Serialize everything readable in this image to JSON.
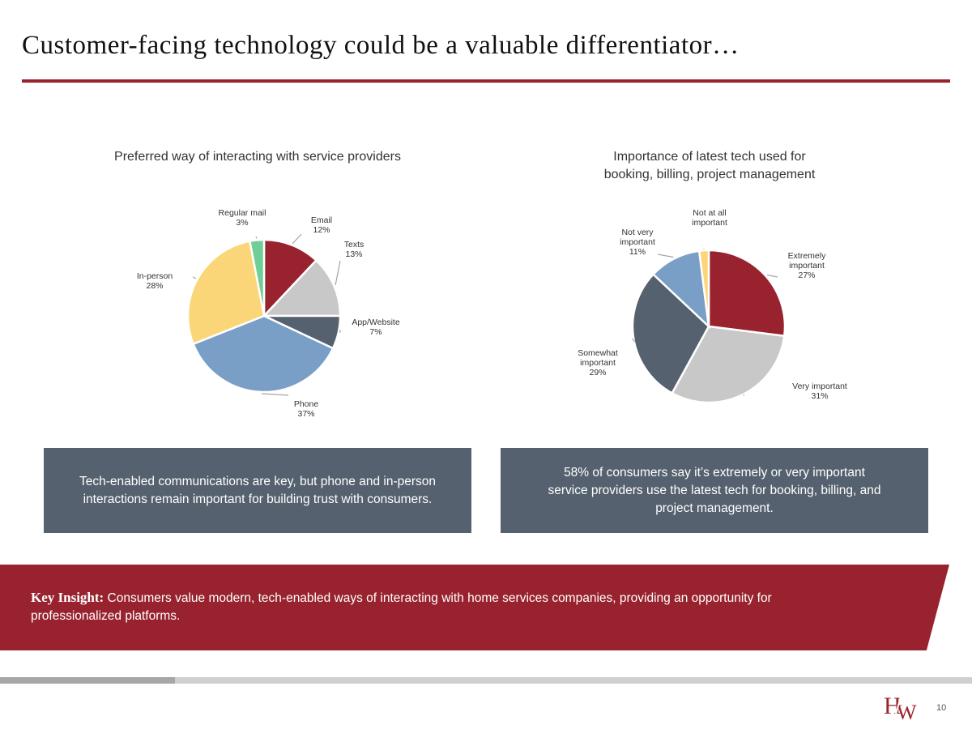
{
  "slide": {
    "title": "Customer-facing technology could be a valuable differentiator…",
    "page_number": "10",
    "logo_text": "HW"
  },
  "callouts": {
    "left": "Tech-enabled communications are key, but phone and in-person\ninteractions remain important for building trust with consumers.",
    "right": "58% of consumers say it’s extremely or very important\nservice providers use the latest tech for booking, billing, and\nproject management."
  },
  "insight": {
    "label": "Key Insight:",
    "text": " Consumers value modern, tech-enabled ways of interacting with home services companies, providing an opportunity for professionalized platforms."
  },
  "colors": {
    "brand_red": "#98232e",
    "callout_bg": "#55616e"
  },
  "chart_data": [
    {
      "type": "pie",
      "title": "Preferred way of interacting with service providers",
      "slices": [
        {
          "label": "Email",
          "value": 12,
          "value_label": "12%",
          "color": "#98232e"
        },
        {
          "label": "Texts",
          "value": 13,
          "value_label": "13%",
          "color": "#c8c8c8"
        },
        {
          "label": "App/Website",
          "value": 7,
          "value_label": "7%",
          "color": "#55616e"
        },
        {
          "label": "Phone",
          "value": 37,
          "value_label": "37%",
          "color": "#7a9fc6"
        },
        {
          "label": "In-person",
          "value": 28,
          "value_label": "28%",
          "color": "#fbd679"
        },
        {
          "label": "Regular mail",
          "value": 3,
          "value_label": "3%",
          "color": "#6fcf97"
        }
      ]
    },
    {
      "type": "pie",
      "title": "Importance of latest tech used for\nbooking, billing, project management",
      "slices": [
        {
          "label": "Extremely important",
          "value": 27,
          "value_label": "27%",
          "color": "#98232e"
        },
        {
          "label": "Very important",
          "value": 31,
          "value_label": "31%",
          "color": "#c8c8c8"
        },
        {
          "label": "Somewhat important",
          "value": 29,
          "value_label": "29%",
          "color": "#55616e"
        },
        {
          "label": "Not very important",
          "value": 11,
          "value_label": "11%",
          "color": "#7a9fc6"
        },
        {
          "label": "Not at all important",
          "value": 2,
          "value_label": "",
          "color": "#fbd679"
        }
      ]
    }
  ]
}
